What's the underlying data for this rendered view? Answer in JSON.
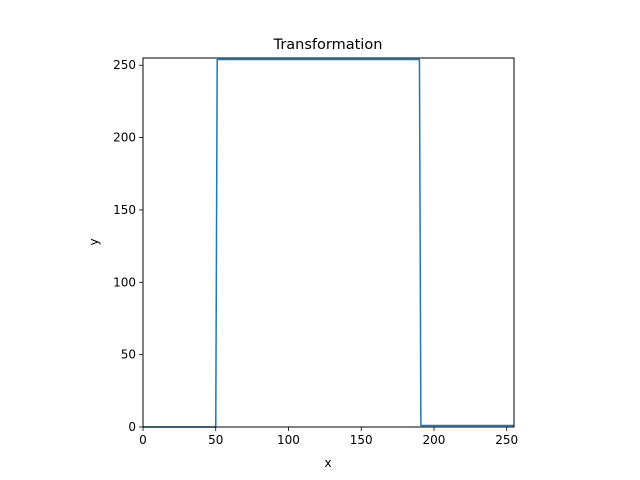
{
  "chart_data": {
    "type": "line",
    "title": "Transformation",
    "xlabel": "x",
    "ylabel": "y",
    "xlim": [
      0,
      255
    ],
    "ylim": [
      0,
      255
    ],
    "xticks": [
      0,
      50,
      100,
      150,
      200,
      250
    ],
    "yticks": [
      0,
      50,
      100,
      150,
      200,
      250
    ],
    "grid": false,
    "line_color": "#1f77b4",
    "series": [
      {
        "x": [
          0,
          50,
          51,
          190,
          191,
          255
        ],
        "y": [
          0,
          0,
          254,
          254,
          1,
          1
        ]
      }
    ]
  }
}
